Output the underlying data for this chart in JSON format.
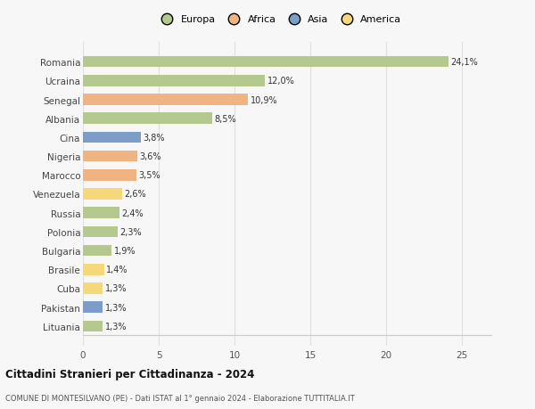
{
  "countries": [
    "Romania",
    "Ucraina",
    "Senegal",
    "Albania",
    "Cina",
    "Nigeria",
    "Marocco",
    "Venezuela",
    "Russia",
    "Polonia",
    "Bulgaria",
    "Brasile",
    "Cuba",
    "Pakistan",
    "Lituania"
  ],
  "values": [
    24.1,
    12.0,
    10.9,
    8.5,
    3.8,
    3.6,
    3.5,
    2.6,
    2.4,
    2.3,
    1.9,
    1.4,
    1.3,
    1.3,
    1.3
  ],
  "labels": [
    "24,1%",
    "12,0%",
    "10,9%",
    "8,5%",
    "3,8%",
    "3,6%",
    "3,5%",
    "2,6%",
    "2,4%",
    "2,3%",
    "1,9%",
    "1,4%",
    "1,3%",
    "1,3%",
    "1,3%"
  ],
  "colors": [
    "#b5c98e",
    "#b5c98e",
    "#f0b482",
    "#b5c98e",
    "#7b9dc7",
    "#f0b482",
    "#f0b482",
    "#f5d87a",
    "#b5c98e",
    "#b5c98e",
    "#b5c98e",
    "#f5d87a",
    "#f5d87a",
    "#7b9dc7",
    "#b5c98e"
  ],
  "legend_labels": [
    "Europa",
    "Africa",
    "Asia",
    "America"
  ],
  "legend_colors": [
    "#b5c98e",
    "#f0b482",
    "#7b9dc7",
    "#f5d87a"
  ],
  "title": "Cittadini Stranieri per Cittadinanza - 2024",
  "subtitle": "COMUNE DI MONTESILVANO (PE) - Dati ISTAT al 1° gennaio 2024 - Elaborazione TUTTITALIA.IT",
  "xlim": [
    0,
    27
  ],
  "xticks": [
    0,
    5,
    10,
    15,
    20,
    25
  ],
  "background_color": "#f7f7f7",
  "grid_color": "#e0e0e0",
  "bar_height": 0.6
}
